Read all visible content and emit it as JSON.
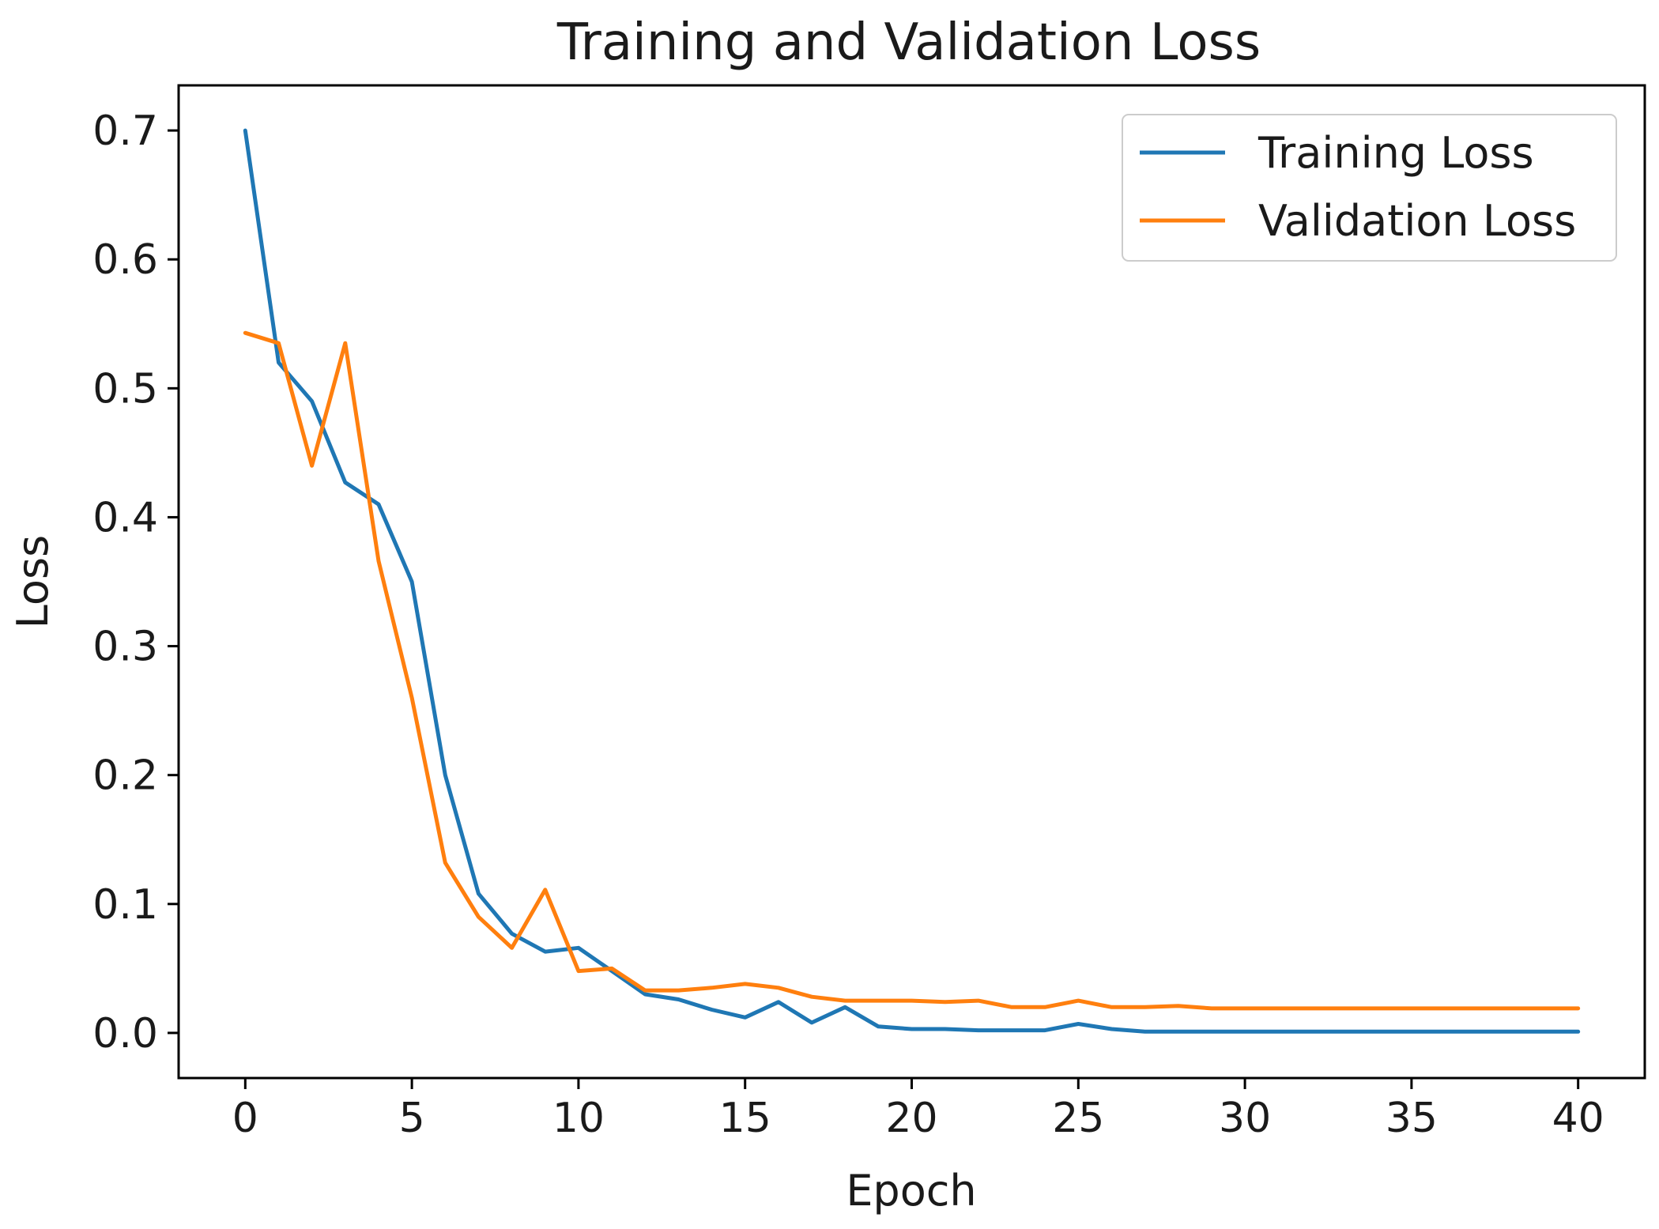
{
  "chart_data": {
    "type": "line",
    "title": "Training and Validation Loss",
    "xlabel": "Epoch",
    "ylabel": "Loss",
    "xlim": [
      -2,
      42
    ],
    "ylim": [
      -0.035,
      0.735
    ],
    "xticks": [
      0,
      5,
      10,
      15,
      20,
      25,
      30,
      35,
      40
    ],
    "xtick_labels": [
      "0",
      "5",
      "10",
      "15",
      "20",
      "25",
      "30",
      "35",
      "40"
    ],
    "yticks": [
      0.0,
      0.1,
      0.2,
      0.3,
      0.4,
      0.5,
      0.6,
      0.7
    ],
    "ytick_labels": [
      "0.0",
      "0.1",
      "0.2",
      "0.3",
      "0.4",
      "0.5",
      "0.6",
      "0.7"
    ],
    "grid": false,
    "legend_position": "top-right",
    "x": [
      0,
      1,
      2,
      3,
      4,
      5,
      6,
      7,
      8,
      9,
      10,
      11,
      12,
      13,
      14,
      15,
      16,
      17,
      18,
      19,
      20,
      21,
      22,
      23,
      24,
      25,
      26,
      27,
      28,
      29,
      30,
      31,
      32,
      33,
      34,
      35,
      36,
      37,
      38,
      39,
      40
    ],
    "series": [
      {
        "name": "Training Loss",
        "color": "#1f77b4",
        "values": [
          0.7,
          0.52,
          0.49,
          0.427,
          0.41,
          0.35,
          0.2,
          0.108,
          0.077,
          0.063,
          0.066,
          0.048,
          0.03,
          0.026,
          0.018,
          0.012,
          0.024,
          0.008,
          0.02,
          0.005,
          0.003,
          0.003,
          0.002,
          0.002,
          0.002,
          0.007,
          0.003,
          0.001,
          0.001,
          0.001,
          0.001,
          0.001,
          0.001,
          0.001,
          0.001,
          0.001,
          0.001,
          0.001,
          0.001,
          0.001,
          0.001
        ]
      },
      {
        "name": "Validation Loss",
        "color": "#ff7f0e",
        "values": [
          0.543,
          0.535,
          0.44,
          0.535,
          0.366,
          0.26,
          0.132,
          0.09,
          0.066,
          0.111,
          0.048,
          0.05,
          0.033,
          0.033,
          0.035,
          0.038,
          0.035,
          0.028,
          0.025,
          0.025,
          0.025,
          0.024,
          0.025,
          0.02,
          0.02,
          0.025,
          0.02,
          0.02,
          0.021,
          0.019,
          0.019,
          0.019,
          0.019,
          0.019,
          0.019,
          0.019,
          0.019,
          0.019,
          0.019,
          0.019,
          0.019
        ]
      }
    ]
  }
}
